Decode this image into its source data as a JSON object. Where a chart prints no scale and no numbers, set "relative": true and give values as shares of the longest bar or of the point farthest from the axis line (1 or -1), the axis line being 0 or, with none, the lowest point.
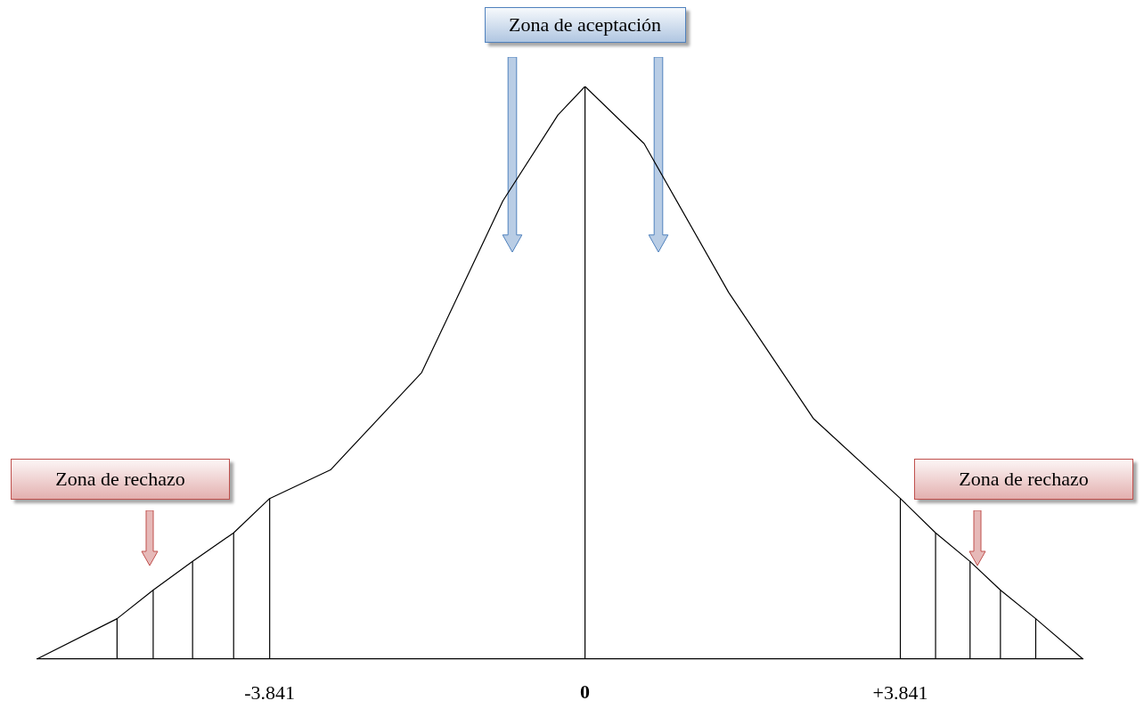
{
  "chart_data": {
    "type": "line",
    "relative": true,
    "x": [
      -6.67,
      -5.7,
      -5.26,
      -4.78,
      -4.28,
      -3.841,
      -3.1,
      -1.99,
      -1.0,
      -0.33,
      0,
      0.72,
      1.75,
      2.78,
      3.841,
      4.27,
      4.69,
      5.06,
      5.49,
      6.06
    ],
    "series": [
      {
        "color": "#000000",
        "values": [
          0,
          0.07,
          0.12,
          0.17,
          0.22,
          0.28,
          0.33,
          0.5,
          0.8,
          0.95,
          1,
          0.9,
          0.64,
          0.42,
          0.28,
          0.22,
          0.17,
          0.12,
          0.07,
          0
        ]
      },
      {
        "color": "#000000",
        "x": [
          -5.7,
          -5.7
        ],
        "values": [
          0,
          0.07
        ]
      },
      {
        "color": "#000000",
        "x": [
          -5.26,
          -5.26
        ],
        "values": [
          0,
          0.12
        ]
      },
      {
        "color": "#000000",
        "x": [
          -4.78,
          -4.78
        ],
        "values": [
          0,
          0.17
        ]
      },
      {
        "color": "#000000",
        "x": [
          -4.28,
          -4.28
        ],
        "values": [
          0,
          0.22
        ]
      },
      {
        "color": "#000000",
        "x": [
          -3.841,
          -3.841
        ],
        "values": [
          0,
          0.28
        ]
      },
      {
        "color": "#000000",
        "x": [
          3.841,
          3.841
        ],
        "values": [
          0,
          0.28
        ]
      },
      {
        "color": "#000000",
        "x": [
          4.27,
          4.27
        ],
        "values": [
          0,
          0.22
        ]
      },
      {
        "color": "#000000",
        "x": [
          4.69,
          4.69
        ],
        "values": [
          0,
          0.17
        ]
      },
      {
        "color": "#000000",
        "x": [
          5.06,
          5.06
        ],
        "values": [
          0,
          0.12
        ]
      },
      {
        "color": "#000000",
        "x": [
          5.49,
          5.49
        ],
        "values": [
          0,
          0.07
        ]
      }
    ],
    "xlim": [
      -6.67,
      6.06
    ],
    "xticks": [
      {
        "value": -3.841,
        "label": "-3.841"
      },
      0,
      {
        "value": 3.841,
        "label": "+3.841"
      }
    ],
    "annotations": [
      "Zona de aceptación",
      "Zona de rechazo",
      "Zona de rechazo"
    ],
    "ref_lines": [
      {
        "axis": "x",
        "value": 0
      }
    ],
    "grid": false,
    "legend": false,
    "marker": "none",
    "line_style": "solid"
  }
}
